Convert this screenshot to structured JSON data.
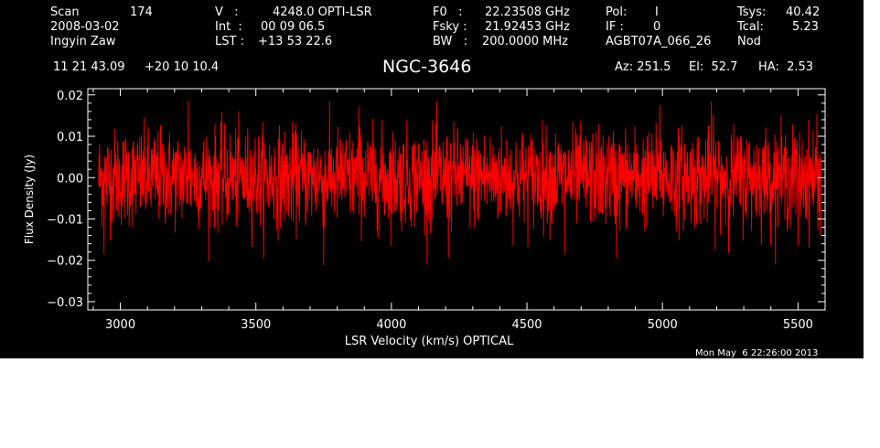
{
  "header": {
    "scan_label": "Scan",
    "scan_value": "174",
    "date": "2008-03-02",
    "observer": "Ingyin Zaw",
    "v_label": "V   :",
    "v_value": "4248.0 OPTI-LSR",
    "int_label": "Int  :",
    "int_value": "00 09 06.5",
    "lst_label": "LST :",
    "lst_value": "+13 53 22.6",
    "f0_label": "F0   :",
    "f0_value": "22.23508 GHz",
    "fsky_label": "Fsky :",
    "fsky_value": "21.92453 GHz",
    "bw_label": "BW   :",
    "bw_value": "200.0000 MHz",
    "pol_label": "Pol:",
    "pol_value": "I",
    "if_label": "IF :",
    "if_value": "0",
    "project": "AGBT07A_066_26",
    "tsys_label": "Tsys:",
    "tsys_value": "40.42",
    "tcal_label": "Tcal:",
    "tcal_value": "5.23",
    "procedure": "Nod",
    "ra": "11 21 43.09",
    "dec": "+20 10 10.4",
    "source": "NGC-3646",
    "az": "Az: 251.5",
    "el": "El:  52.7",
    "ha": "HA:  2.53",
    "timestamp": "Mon May  6 22:26:00 2013"
  },
  "colors": {
    "background": "#000000",
    "axes": "#ffffff",
    "trace": "#ff0000"
  },
  "chart_data": {
    "type": "line",
    "xlabel": "LSR Velocity (km/s) OPTICAL",
    "ylabel": "Flux Density (Jy)",
    "xlim": [
      2880,
      5600
    ],
    "ylim": [
      -0.032,
      0.0215
    ],
    "xticks": [
      3000,
      3500,
      4000,
      4500,
      5000,
      5500
    ],
    "xtick_labels": [
      "3000",
      "3500",
      "4000",
      "4500",
      "5000",
      "5500"
    ],
    "yticks": [
      -0.03,
      -0.02,
      -0.01,
      0.0,
      0.01,
      0.02
    ],
    "ytick_labels": [
      "−0.03",
      "−0.02",
      "−0.01",
      "0.00",
      "0.01",
      "0.02"
    ],
    "grid": false,
    "series": [
      {
        "x_start": 2920,
        "x_end": 5585,
        "n_points": 2300,
        "mean": 0.0,
        "std": 0.0058,
        "range_observed": [
          -0.021,
          0.0185
        ],
        "spikes": [
          {
            "x": 2940,
            "y": -0.0185
          },
          {
            "x": 3250,
            "y": 0.0185
          },
          {
            "x": 3750,
            "y": -0.0212
          },
          {
            "x": 3880,
            "y": 0.0172
          },
          {
            "x": 4210,
            "y": -0.0195
          },
          {
            "x": 4640,
            "y": -0.0185
          },
          {
            "x": 4830,
            "y": -0.0195
          },
          {
            "x": 4990,
            "y": 0.0175
          },
          {
            "x": 5180,
            "y": 0.0185
          },
          {
            "x": 5500,
            "y": -0.0165
          },
          {
            "x": 5570,
            "y": 0.0155
          }
        ]
      }
    ]
  }
}
